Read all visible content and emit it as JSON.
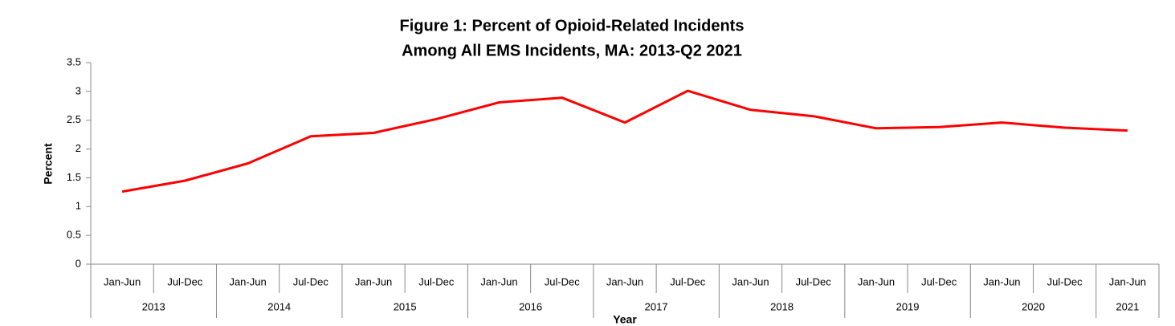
{
  "chart_data": {
    "type": "line",
    "title": [
      "Figure 1: Percent of Opioid-Related Incidents",
      "Among All EMS Incidents, MA: 2013-Q2 2021"
    ],
    "xlabel": "Year",
    "ylabel": "Percent",
    "categories": [
      "Jan-Jun",
      "Jul-Dec",
      "Jan-Jun",
      "Jul-Dec",
      "Jan-Jun",
      "Jul-Dec",
      "Jan-Jun",
      "Jul-Dec",
      "Jan-Jun",
      "Jul-Dec",
      "Jan-Jun",
      "Jul-Dec",
      "Jan-Jun",
      "Jul-Dec",
      "Jan-Jun",
      "Jul-Dec",
      "Jan-Jun"
    ],
    "category_groups": [
      "2013",
      "2014",
      "2015",
      "2016",
      "2017",
      "2018",
      "2019",
      "2020",
      "2021"
    ],
    "values": [
      1.26,
      1.45,
      1.75,
      2.22,
      2.28,
      2.52,
      2.81,
      2.89,
      2.46,
      3.01,
      2.68,
      2.57,
      2.36,
      2.38,
      2.46,
      2.37,
      2.32
    ],
    "color": "#ff0000",
    "ylim": [
      0,
      3.5
    ],
    "yticks": [
      0,
      0.5,
      1,
      1.5,
      2,
      2.5,
      3,
      3.5
    ],
    "grid": false
  }
}
